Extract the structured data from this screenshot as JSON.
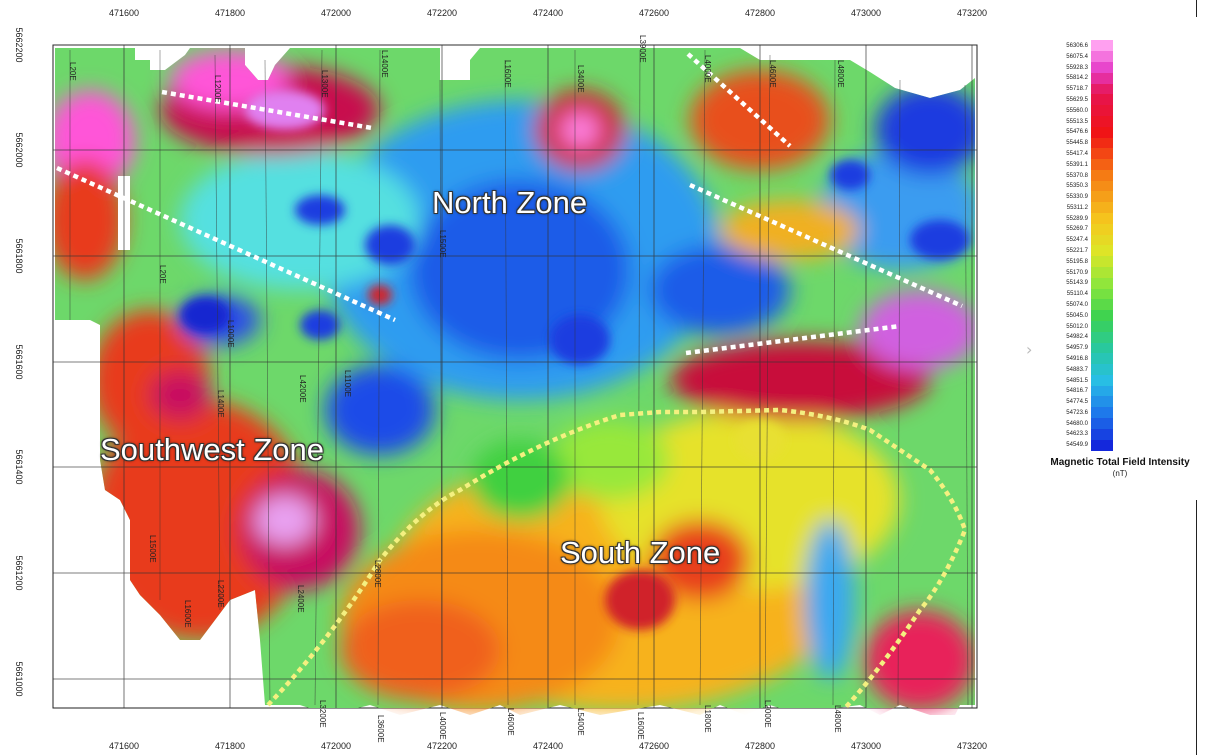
{
  "map": {
    "x_ticks": [
      "471600",
      "471800",
      "472000",
      "472200",
      "472400",
      "472600",
      "472800",
      "473000",
      "473200"
    ],
    "y_ticks": [
      "5662200",
      "5662000",
      "5661800",
      "5661600",
      "5661400",
      "5661200",
      "5661000"
    ],
    "zones": [
      {
        "name": "North Zone"
      },
      {
        "name": "Southwest Zone"
      },
      {
        "name": "South Zone"
      }
    ],
    "line_labels": [
      "L20E",
      "L1200E",
      "L1300E",
      "L1400E",
      "L1500E",
      "L1600E",
      "L3400E",
      "L3900E",
      "L4000E",
      "L4600E",
      "L4800E",
      "L20E",
      "L4200E",
      "L1000E",
      "L1100E",
      "L1400E",
      "L1500E",
      "L1600E",
      "L2200E",
      "L2400E",
      "L2800E",
      "L3200E",
      "L3600E",
      "L4000E",
      "L4600E",
      "L5400E",
      "L1600E",
      "L1800E",
      "L2000E",
      "L4800E"
    ]
  },
  "legend": {
    "title": "Magnetic Total Field Intensity",
    "unit": "(nT)",
    "values": [
      "56306.6",
      "56075.4",
      "55928.3",
      "55814.2",
      "55718.7",
      "55629.5",
      "55560.0",
      "55513.5",
      "55476.6",
      "55445.8",
      "55417.4",
      "55391.1",
      "55370.8",
      "55350.3",
      "55330.9",
      "55311.2",
      "55289.9",
      "55269.7",
      "55247.4",
      "55221.7",
      "55195.8",
      "55170.9",
      "55143.9",
      "55110.4",
      "55074.0",
      "55045.0",
      "55012.0",
      "54982.4",
      "54957.9",
      "54916.8",
      "54883.7",
      "54851.5",
      "54816.7",
      "54774.5",
      "54723.6",
      "54680.0",
      "54623.3",
      "54549.9"
    ]
  }
}
